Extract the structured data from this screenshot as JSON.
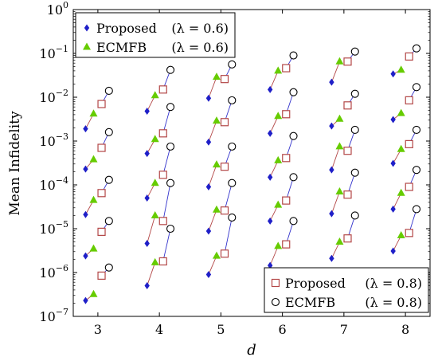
{
  "chart_data": {
    "type": "scatter",
    "xlabel": "d",
    "ylabel": "Mean Infidelity",
    "y_scale": "log",
    "ylim": [
      1e-07,
      1
    ],
    "xlim": [
      2.6,
      8.4
    ],
    "x_ticks": [
      "3",
      "4",
      "5",
      "6",
      "7",
      "8"
    ],
    "y_ticks": [
      {
        "base": "10",
        "exp": "0"
      },
      {
        "base": "10",
        "exp": "−1"
      },
      {
        "base": "10",
        "exp": "−2"
      },
      {
        "base": "10",
        "exp": "−3"
      },
      {
        "base": "10",
        "exp": "−4"
      },
      {
        "base": "10",
        "exp": "−5"
      },
      {
        "base": "10",
        "exp": "−6"
      },
      {
        "base": "10",
        "exp": "−7"
      }
    ],
    "grid": false,
    "x_offsets": {
      "proposed_06": -0.2,
      "ecmfb_06": -0.07,
      "proposed_08": 0.06,
      "ecmfb_08": 0.18
    },
    "colors": {
      "proposed_06": "#1f1fc8",
      "ecmfb_06": "#66cc00",
      "proposed_08": "#b34747",
      "ecmfb_08": "#000000",
      "line_06": "#b34747",
      "line_08": "#3333cc"
    },
    "series": [
      {
        "name": "Proposed (λ = 0.6)",
        "key": "proposed_06",
        "marker": "diamond",
        "points": [
          {
            "x": 3,
            "y": [
              0.0019,
              0.00023,
              2.1e-05,
              2.4e-06,
              2.3e-07
            ]
          },
          {
            "x": 4,
            "y": [
              0.0048,
              0.00052,
              5e-05,
              4.6e-06,
              5e-07
            ]
          },
          {
            "x": 5,
            "y": [
              0.0095,
              0.00095,
              9e-05,
              8.8e-06,
              9e-07
            ]
          },
          {
            "x": 6,
            "y": [
              0.015,
              0.0015,
              0.00015,
              1.5e-05,
              1.45e-06
            ]
          },
          {
            "x": 7,
            "y": [
              0.022,
              0.0022,
              0.00022,
              2.2e-05,
              2.1e-06
            ]
          },
          {
            "x": 8,
            "y": [
              0.034,
              0.0031,
              0.00031,
              2.8e-05,
              3.1e-06
            ]
          }
        ]
      },
      {
        "name": "ECMFB (λ = 0.6)",
        "key": "ecmfb_06",
        "marker": "triangle",
        "points": [
          {
            "x": 3,
            "y": [
              0.0042,
              0.00038,
              4.5e-05,
              3.5e-06,
              3.2e-07
            ]
          },
          {
            "x": 4,
            "y": [
              0.011,
              0.0011,
              0.00011,
              2e-05,
              1.7e-06
            ]
          },
          {
            "x": 5,
            "y": [
              0.029,
              0.0029,
              0.00029,
              2.7e-05,
              2.4e-06
            ]
          },
          {
            "x": 6,
            "y": [
              0.04,
              0.0037,
              0.00036,
              3.5e-05,
              4e-06
            ]
          },
          {
            "x": 7,
            "y": [
              0.065,
              0.0032,
              0.00075,
              7e-05,
              5e-06
            ]
          },
          {
            "x": 8,
            "y": [
              0.042,
              0.0043,
              0.00065,
              6.5e-05,
              7e-06
            ]
          }
        ]
      },
      {
        "name": "Proposed (λ = 0.8)",
        "key": "proposed_08",
        "marker": "square",
        "points": [
          {
            "x": 3,
            "y": [
              0.007,
              0.0007,
              6.5e-05,
              8.5e-06,
              8.5e-07
            ]
          },
          {
            "x": 4,
            "y": [
              0.015,
              0.0015,
              0.00017,
              1.5e-05,
              1.8e-06
            ]
          },
          {
            "x": 5,
            "y": [
              0.026,
              0.0027,
              0.00026,
              2.6e-05,
              2.7e-06
            ]
          },
          {
            "x": 6,
            "y": [
              0.046,
              0.0041,
              0.00041,
              4.4e-05,
              4.4e-06
            ]
          },
          {
            "x": 7,
            "y": [
              0.065,
              0.0065,
              0.0006,
              6e-05,
              6e-06
            ]
          },
          {
            "x": 8,
            "y": [
              0.085,
              0.0085,
              0.00085,
              9e-05,
              8e-06
            ]
          }
        ]
      },
      {
        "name": "ECMFB (λ = 0.8)",
        "key": "ecmfb_08",
        "marker": "circle",
        "points": [
          {
            "x": 3,
            "y": [
              0.014,
              0.0016,
              0.00013,
              1.5e-05,
              1.3e-06
            ]
          },
          {
            "x": 4,
            "y": [
              0.042,
              0.006,
              0.00075,
              0.00011,
              1e-05
            ]
          },
          {
            "x": 5,
            "y": [
              0.056,
              0.0085,
              0.00075,
              0.00011,
              1.8e-05
            ]
          },
          {
            "x": 6,
            "y": [
              0.09,
              0.013,
              0.0013,
              0.00015,
              1.5e-05
            ]
          },
          {
            "x": 7,
            "y": [
              0.11,
              0.012,
              0.0018,
              0.00019,
              2e-05
            ]
          },
          {
            "x": 8,
            "y": [
              0.13,
              0.017,
              0.0018,
              0.00022,
              2.8e-05
            ]
          }
        ]
      }
    ],
    "legend_top_left": [
      {
        "key": "proposed_06",
        "marker": "diamond",
        "label": "Proposed",
        "lambda": "(λ = 0.6)"
      },
      {
        "key": "ecmfb_06",
        "marker": "triangle",
        "label": "ECMFB",
        "lambda": "(λ = 0.6)"
      }
    ],
    "legend_bottom_right": [
      {
        "key": "proposed_08",
        "marker": "square",
        "label": "Proposed",
        "lambda": "(λ = 0.8)"
      },
      {
        "key": "ecmfb_08",
        "marker": "circle",
        "label": "ECMFB",
        "lambda": "(λ = 0.8)"
      }
    ]
  }
}
